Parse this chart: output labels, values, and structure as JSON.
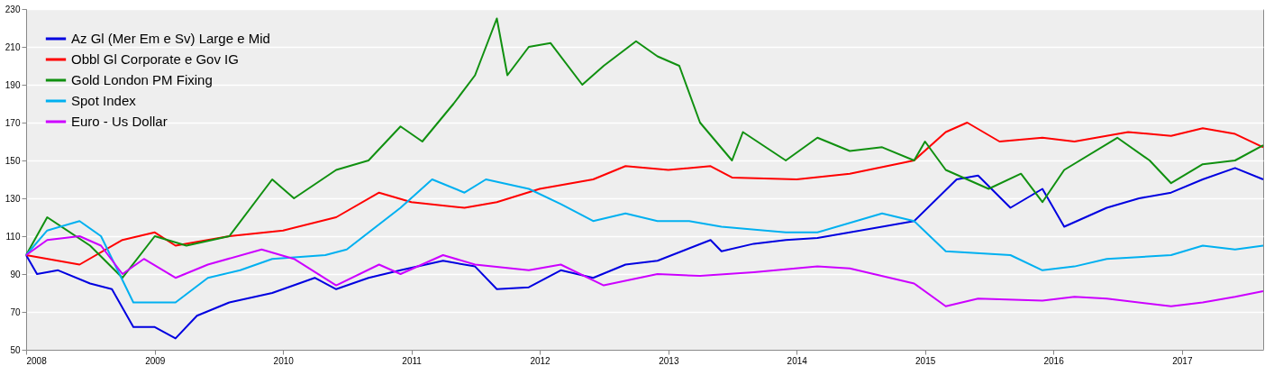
{
  "chart_data": {
    "type": "line",
    "ylim": [
      50,
      230
    ],
    "yticks": [
      50,
      70,
      90,
      110,
      130,
      150,
      170,
      190,
      210,
      230
    ],
    "xlim": [
      "2008-01-01",
      "2017-08-20"
    ],
    "xticks": [
      "2008",
      "2009",
      "2010",
      "2011",
      "2012",
      "2013",
      "2014",
      "2015",
      "2016",
      "2017"
    ],
    "grid": "y",
    "legend": "top left",
    "line_style": "solid",
    "series": [
      {
        "name": "Az Gl (Mer Em e Sv) Large e Mid",
        "color": "#0000e0",
        "x": [
          "2008-01",
          "2008-02",
          "2008-04",
          "2008-07",
          "2008-09",
          "2008-11",
          "2009-01",
          "2009-03",
          "2009-05",
          "2009-08",
          "2009-12",
          "2010-04",
          "2010-06",
          "2010-09",
          "2010-12",
          "2011-04",
          "2011-07",
          "2011-09",
          "2011-12",
          "2012-03",
          "2012-06",
          "2012-09",
          "2012-12",
          "2013-05",
          "2013-06",
          "2013-09",
          "2013-12",
          "2014-03",
          "2014-06",
          "2014-09",
          "2014-12",
          "2015-04",
          "2015-06",
          "2015-09",
          "2015-12",
          "2016-02",
          "2016-06",
          "2016-09",
          "2016-12",
          "2017-03",
          "2017-06",
          "2017-08-20"
        ],
        "values": [
          100,
          90,
          92,
          85,
          82,
          62,
          62,
          56,
          68,
          75,
          80,
          88,
          82,
          88,
          92,
          97,
          94,
          82,
          83,
          92,
          88,
          95,
          97,
          108,
          102,
          106,
          108,
          109,
          112,
          115,
          118,
          140,
          142,
          125,
          135,
          115,
          125,
          130,
          133,
          140,
          146,
          140
        ]
      },
      {
        "name": "Obbl Gl Corporate e Gov IG",
        "color": "#ff0000",
        "x": [
          "2008-01",
          "2008-06",
          "2008-10",
          "2009-01",
          "2009-03",
          "2009-08",
          "2010-01",
          "2010-06",
          "2010-10",
          "2011-01",
          "2011-06",
          "2011-09",
          "2012-01",
          "2012-06",
          "2012-09",
          "2013-01",
          "2013-05",
          "2013-07",
          "2014-01",
          "2014-06",
          "2014-12",
          "2015-03",
          "2015-05",
          "2015-08",
          "2015-12",
          "2016-03",
          "2016-08",
          "2016-12",
          "2017-03",
          "2017-06",
          "2017-08-20"
        ],
        "values": [
          100,
          95,
          108,
          112,
          105,
          110,
          113,
          120,
          133,
          128,
          125,
          128,
          135,
          140,
          147,
          145,
          147,
          141,
          140,
          143,
          150,
          165,
          170,
          160,
          162,
          160,
          165,
          163,
          167,
          164,
          157
        ]
      },
      {
        "name": "Gold London PM Fixing",
        "color": "#109010",
        "x": [
          "2008-01",
          "2008-03",
          "2008-07",
          "2008-10",
          "2009-01",
          "2009-04",
          "2009-08",
          "2009-12",
          "2010-02",
          "2010-06",
          "2010-09",
          "2010-12",
          "2011-02",
          "2011-05",
          "2011-07",
          "2011-09",
          "2011-10",
          "2011-12",
          "2012-02",
          "2012-05",
          "2012-07",
          "2012-10",
          "2012-12",
          "2013-02",
          "2013-04",
          "2013-07",
          "2013-08",
          "2013-12",
          "2014-03",
          "2014-06",
          "2014-09",
          "2014-12",
          "2015-01",
          "2015-03",
          "2015-07",
          "2015-10",
          "2015-12",
          "2016-02",
          "2016-07",
          "2016-10",
          "2016-12",
          "2017-03",
          "2017-06",
          "2017-08-20"
        ],
        "values": [
          100,
          120,
          105,
          88,
          110,
          105,
          110,
          140,
          130,
          145,
          150,
          168,
          160,
          180,
          195,
          225,
          195,
          210,
          212,
          190,
          200,
          213,
          205,
          200,
          170,
          150,
          165,
          150,
          162,
          155,
          157,
          150,
          160,
          145,
          135,
          143,
          128,
          145,
          162,
          150,
          138,
          148,
          150,
          158
        ]
      },
      {
        "name": "Spot Index",
        "color": "#00b0f0",
        "x": [
          "2008-01",
          "2008-03",
          "2008-06",
          "2008-08",
          "2008-11",
          "2009-03",
          "2009-06",
          "2009-09",
          "2009-12",
          "2010-05",
          "2010-07",
          "2010-12",
          "2011-03",
          "2011-06",
          "2011-08",
          "2011-12",
          "2012-03",
          "2012-06",
          "2012-09",
          "2012-12",
          "2013-03",
          "2013-06",
          "2013-12",
          "2014-03",
          "2014-09",
          "2014-12",
          "2015-03",
          "2015-09",
          "2015-12",
          "2016-03",
          "2016-06",
          "2016-12",
          "2017-03",
          "2017-06",
          "2017-08-20"
        ],
        "values": [
          100,
          113,
          118,
          110,
          75,
          75,
          88,
          92,
          98,
          100,
          103,
          125,
          140,
          133,
          140,
          135,
          127,
          118,
          122,
          118,
          118,
          115,
          112,
          112,
          122,
          118,
          102,
          100,
          92,
          94,
          98,
          100,
          105,
          103,
          105
        ]
      },
      {
        "name": "Euro - Us Dollar",
        "color": "#cc00ff",
        "x": [
          "2008-01",
          "2008-03",
          "2008-06",
          "2008-08",
          "2008-10",
          "2008-12",
          "2009-03",
          "2009-06",
          "2009-11",
          "2010-02",
          "2010-06",
          "2010-10",
          "2010-12",
          "2011-04",
          "2011-07",
          "2011-12",
          "2012-03",
          "2012-07",
          "2012-12",
          "2013-04",
          "2013-09",
          "2014-03",
          "2014-06",
          "2014-12",
          "2015-03",
          "2015-06",
          "2015-12",
          "2016-03",
          "2016-06",
          "2016-12",
          "2017-03",
          "2017-06",
          "2017-08-20"
        ],
        "values": [
          100,
          108,
          110,
          105,
          90,
          98,
          88,
          95,
          103,
          98,
          84,
          95,
          90,
          100,
          95,
          92,
          95,
          84,
          90,
          89,
          91,
          94,
          93,
          85,
          73,
          77,
          76,
          78,
          77,
          73,
          75,
          78,
          81
        ]
      }
    ]
  }
}
